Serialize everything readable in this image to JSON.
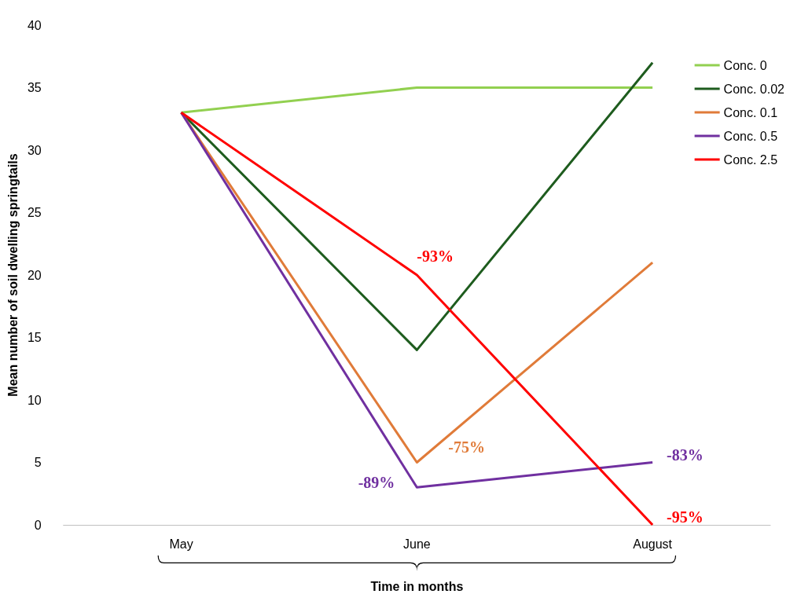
{
  "chart_data": {
    "type": "line",
    "xlabel": "Time in months",
    "ylabel": "Mean number of soil dwelling springtails",
    "categories": [
      "May",
      "June",
      "August"
    ],
    "series": [
      {
        "name": "Conc. 0",
        "color": "#92d050",
        "values": [
          33,
          35,
          35
        ]
      },
      {
        "name": "Conc. 0.02",
        "color": "#1e5c1e",
        "values": [
          33,
          14,
          37
        ]
      },
      {
        "name": "Conc. 0.1",
        "color": "#e07b39",
        "values": [
          33,
          5,
          21
        ]
      },
      {
        "name": "Conc. 0.5",
        "color": "#7030a0",
        "values": [
          33,
          3,
          5
        ]
      },
      {
        "name": "Conc. 2.5",
        "color": "#ff0000",
        "values": [
          33,
          20,
          0
        ]
      }
    ],
    "annotations": [
      {
        "text": "-93%",
        "x": "June",
        "y": 20
      },
      {
        "text": "-75%",
        "x": "June",
        "y": 5
      },
      {
        "text": "-89%",
        "x": "June",
        "y": 3
      },
      {
        "text": "-83%",
        "x": "August",
        "y": 5
      },
      {
        "text": "-95%",
        "x": "August",
        "y": 0
      }
    ],
    "ylim": [
      0,
      40
    ],
    "yticks": [
      0,
      5,
      10,
      15,
      20,
      25,
      30,
      35,
      40
    ],
    "grid": false,
    "legend": "top right",
    "marker": "none",
    "line_style": "solid"
  }
}
